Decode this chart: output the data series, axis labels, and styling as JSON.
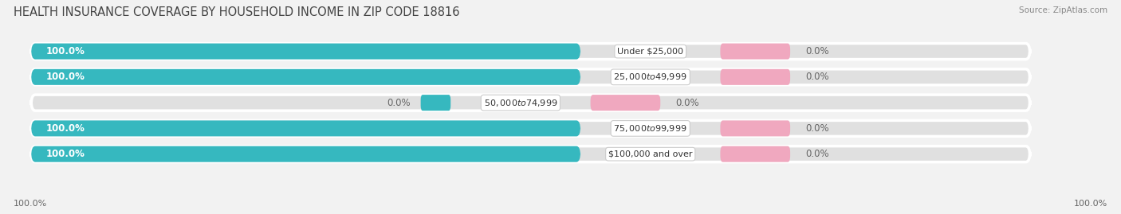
{
  "title": "HEALTH INSURANCE COVERAGE BY HOUSEHOLD INCOME IN ZIP CODE 18816",
  "source": "Source: ZipAtlas.com",
  "categories": [
    "Under $25,000",
    "$25,000 to $49,999",
    "$50,000 to $74,999",
    "$75,000 to $99,999",
    "$100,000 and over"
  ],
  "with_coverage": [
    100.0,
    100.0,
    0.0,
    100.0,
    100.0
  ],
  "without_coverage": [
    0.0,
    0.0,
    0.0,
    0.0,
    0.0
  ],
  "color_with": "#36b8bf",
  "color_without": "#f0a8bf",
  "bg_color": "#f2f2f2",
  "bar_bg_color": "#e0e0e0",
  "bar_height": 0.62,
  "title_fontsize": 10.5,
  "label_fontsize": 8.5,
  "axis_label_fontsize": 8,
  "legend_fontsize": 8.5,
  "x_left_label": "100.0%",
  "x_right_label": "100.0%"
}
